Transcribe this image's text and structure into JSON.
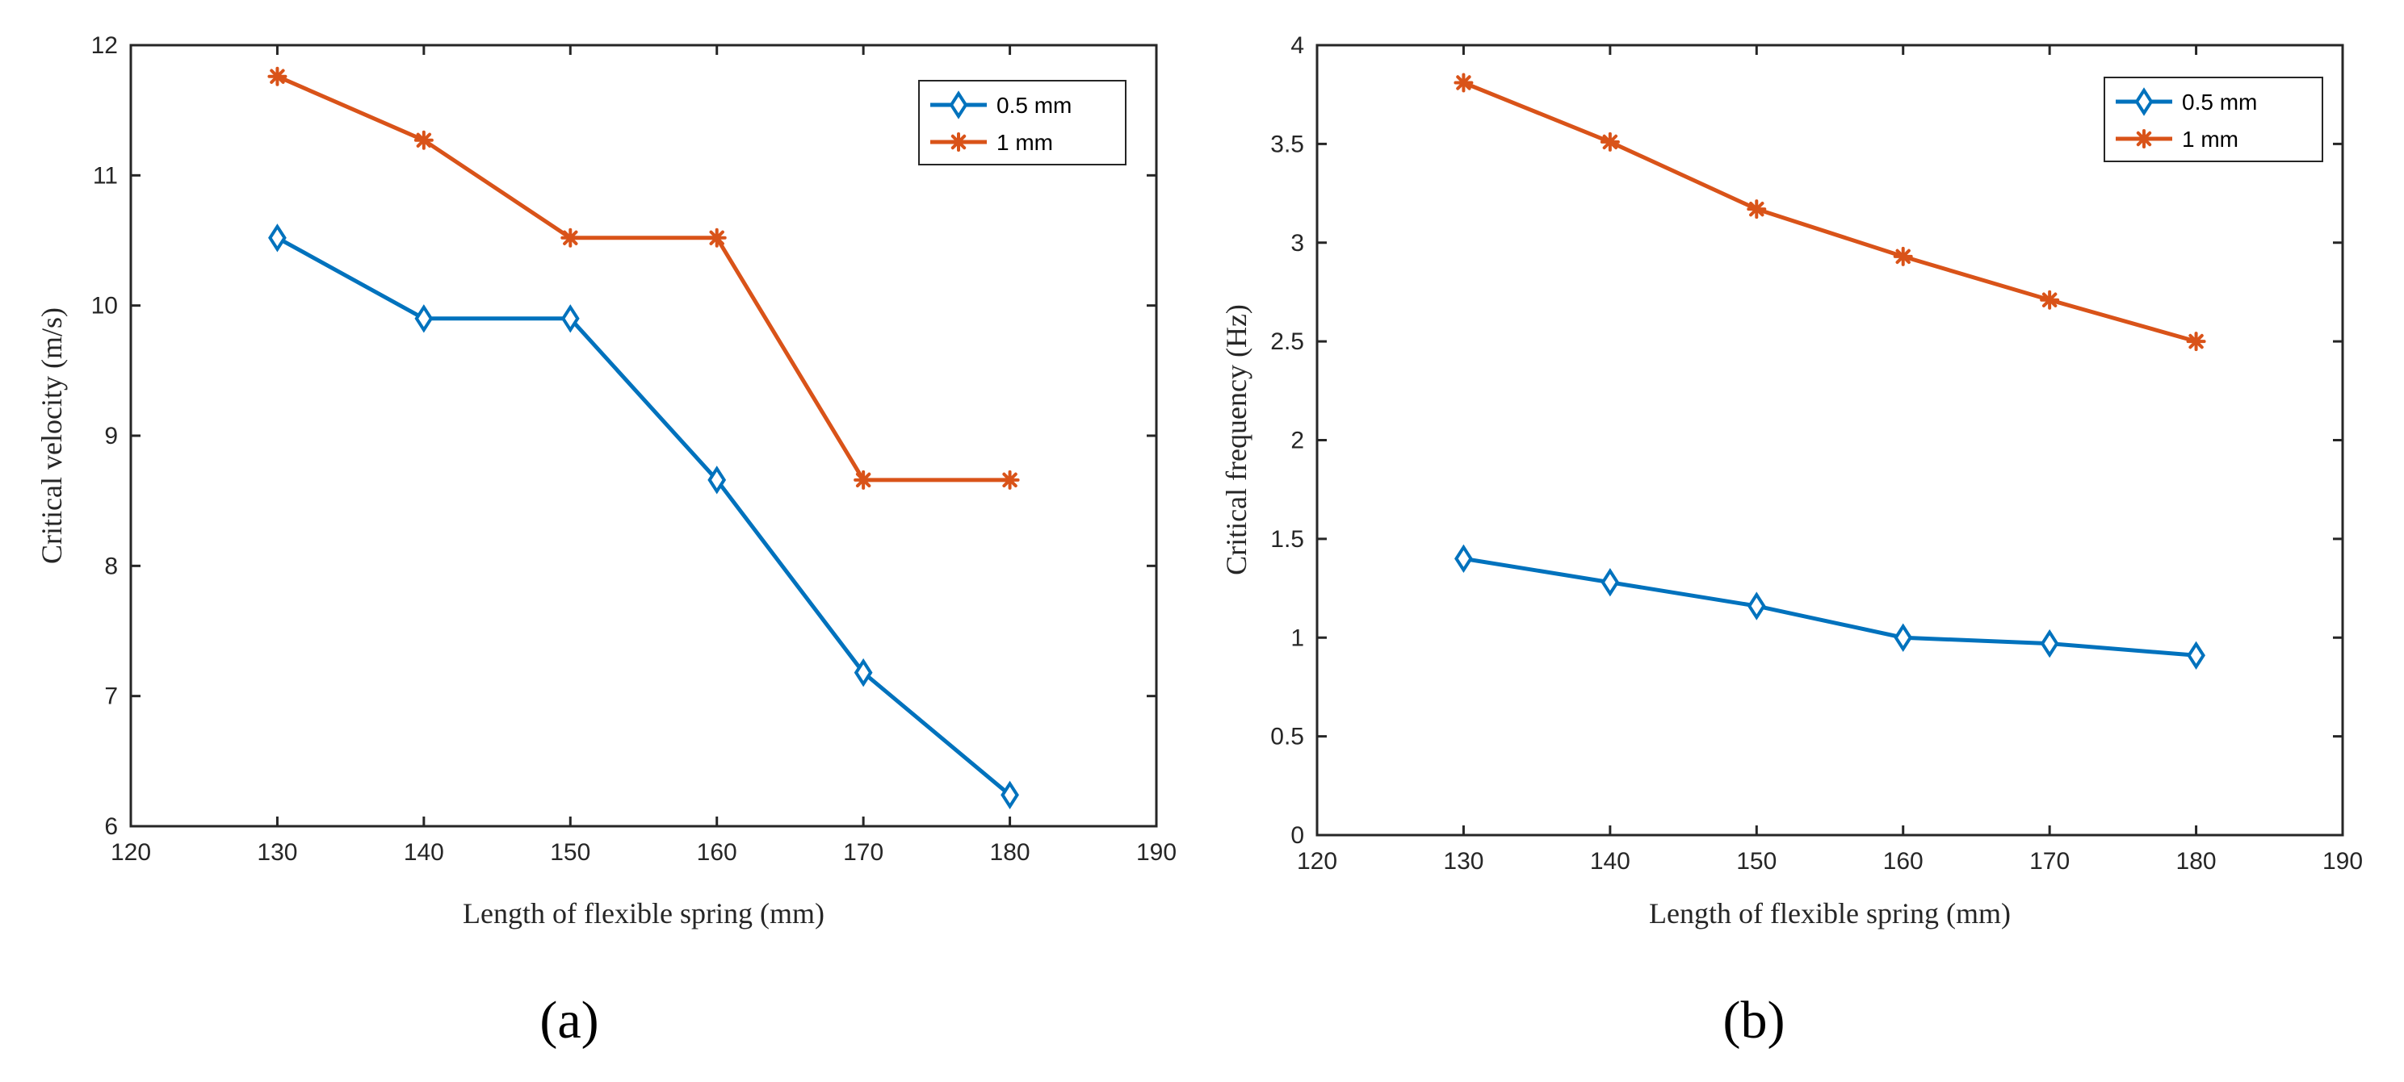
{
  "colors": {
    "series_a": "#0072BD",
    "series_b": "#D95319",
    "axis": "#262626"
  },
  "chart_data": [
    {
      "type": "line",
      "caption": "(a)",
      "xlabel": "Length of flexible spring (mm)",
      "ylabel": "Critical velocity (m/s)",
      "xlim": [
        120,
        190
      ],
      "ylim": [
        6,
        12
      ],
      "xticks": [
        "120",
        "130",
        "140",
        "150",
        "160",
        "170",
        "180",
        "190"
      ],
      "yticks": [
        "6",
        "7",
        "8",
        "9",
        "10",
        "11",
        "12"
      ],
      "legend_position": "top-right",
      "x": [
        130,
        140,
        150,
        160,
        170,
        180
      ],
      "series": [
        {
          "name": "0.5 mm",
          "marker": "diamond",
          "values": [
            10.52,
            9.9,
            9.9,
            8.66,
            7.18,
            6.24
          ]
        },
        {
          "name": "1 mm",
          "marker": "asterisk",
          "values": [
            11.76,
            11.27,
            10.52,
            10.52,
            8.66,
            8.66
          ]
        }
      ]
    },
    {
      "type": "line",
      "caption": "(b)",
      "xlabel": "Length of flexible spring (mm)",
      "ylabel": "Critical frequency (Hz)",
      "xlim": [
        120,
        190
      ],
      "ylim": [
        0,
        4
      ],
      "xticks": [
        "120",
        "130",
        "140",
        "150",
        "160",
        "170",
        "180",
        "190"
      ],
      "yticks": [
        "0",
        "0.5",
        "1",
        "1.5",
        "2",
        "2.5",
        "3",
        "3.5",
        "4"
      ],
      "legend_position": "top-right",
      "x": [
        130,
        140,
        150,
        160,
        170,
        180
      ],
      "series": [
        {
          "name": "0.5 mm",
          "marker": "diamond",
          "values": [
            1.4,
            1.28,
            1.16,
            1.0,
            0.97,
            0.91
          ]
        },
        {
          "name": "1 mm",
          "marker": "asterisk",
          "values": [
            3.81,
            3.51,
            3.17,
            2.93,
            2.71,
            2.5
          ]
        }
      ]
    }
  ]
}
